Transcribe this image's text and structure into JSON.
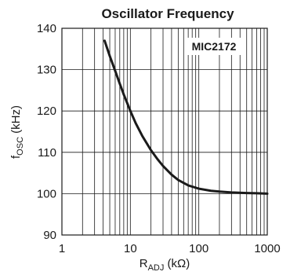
{
  "chart_data": {
    "type": "line",
    "title": "Oscillator Frequency",
    "xlabel": "R",
    "xlabel_sub": "ADJ",
    "xlabel_unit": " (kΩ)",
    "ylabel": "f",
    "ylabel_sub": "OSC",
    "ylabel_unit": " (kHz)",
    "annotation": "MIC2172",
    "xscale": "log",
    "xlim": [
      1,
      1000
    ],
    "ylim": [
      90,
      140
    ],
    "xticks": [
      1,
      10,
      100,
      1000
    ],
    "xtick_labels": [
      "1",
      "10",
      "100",
      "1000"
    ],
    "yticks": [
      90,
      100,
      110,
      120,
      130,
      140
    ],
    "ytick_labels": [
      "90",
      "100",
      "110",
      "120",
      "130",
      "140"
    ],
    "grid": true,
    "series": [
      {
        "x": [
          4.2,
          5,
          6,
          7,
          8,
          10,
          12,
          15,
          20,
          25,
          30,
          40,
          50,
          70,
          100,
          150,
          200,
          300,
          500,
          700,
          1000
        ],
        "values": [
          137,
          133.3,
          129.7,
          126.6,
          124,
          120,
          117,
          113.9,
          110.5,
          108.3,
          106.7,
          104.6,
          103.3,
          102,
          101.2,
          100.7,
          100.5,
          100.3,
          100.15,
          100.1,
          100
        ]
      }
    ]
  }
}
